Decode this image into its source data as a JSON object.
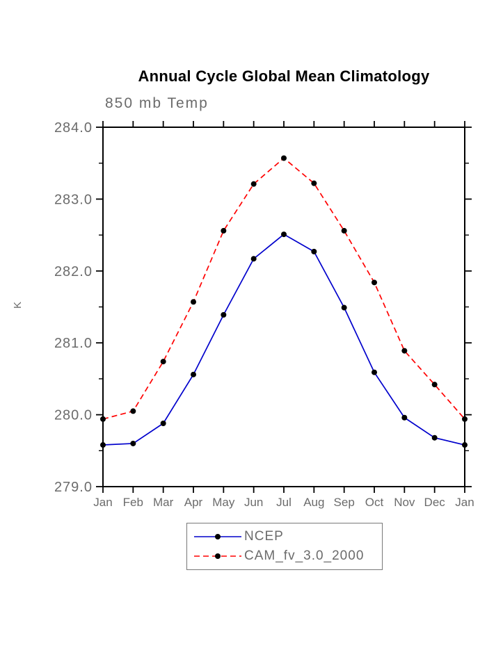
{
  "chart": {
    "title": "Annual Cycle Global Mean Climatology",
    "subtitle": "850 mb Temp",
    "ylabel": "K"
  },
  "colors": {
    "background": "#ffffff",
    "axis": "#000000",
    "labels": "#6b6b6b",
    "marker": "#000000",
    "legend_border": "#777777"
  },
  "chart_data": {
    "type": "line",
    "title": "Annual Cycle Global Mean Climatology",
    "subtitle": "850 mb Temp",
    "ylabel": "K",
    "categories": [
      "Jan",
      "Feb",
      "Mar",
      "Apr",
      "May",
      "Jun",
      "Jul",
      "Aug",
      "Sep",
      "Oct",
      "Nov",
      "Dec",
      "Jan"
    ],
    "series": [
      {
        "name": "NCEP",
        "color": "#0000cc",
        "style": "solid",
        "marker": "circle",
        "marker_color": "#000000",
        "values": [
          279.58,
          279.6,
          279.88,
          280.56,
          281.39,
          282.17,
          282.51,
          282.27,
          281.49,
          280.59,
          279.96,
          279.68,
          279.58
        ]
      },
      {
        "name": "CAM_fv_3.0_2000",
        "color": "#ff0000",
        "style": "dashed",
        "marker": "circle",
        "marker_color": "#000000",
        "values": [
          279.94,
          280.05,
          280.74,
          281.57,
          282.56,
          283.21,
          283.57,
          283.22,
          282.56,
          281.84,
          280.89,
          280.42,
          279.94
        ]
      }
    ],
    "ylim": [
      279.0,
      284.0
    ],
    "ytick_step": 1.0,
    "yminor_step": 0.5,
    "ytick_labels": [
      "279.0",
      "280.0",
      "281.0",
      "282.0",
      "283.0",
      "284.0"
    ],
    "grid": false,
    "legend_position": "below-center"
  }
}
